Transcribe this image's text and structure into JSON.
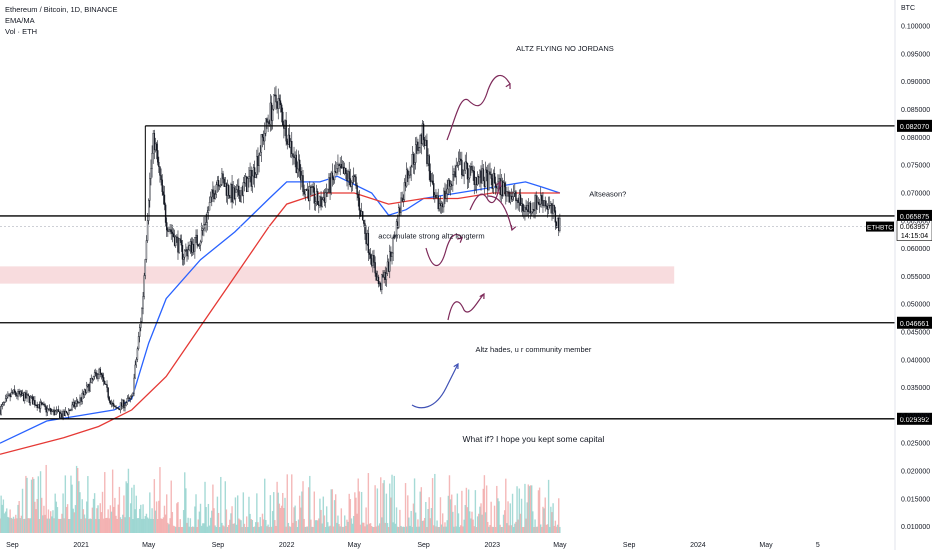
{
  "header": {
    "symbol_line": "Ethereum / Bitcoin, 1D, BINANCE",
    "indicator_1": "EMA/MA",
    "indicator_2": "Vol · ETH"
  },
  "colors": {
    "candle": "#131722",
    "ema": "#2962ff",
    "ma": "#e53935",
    "ma_light": "#90a4f5",
    "zone": "#f5d0d3",
    "line": "#000000",
    "arrow": "#7e2a5a",
    "arrow_blue": "#3f51b5",
    "vol_up": "#80cbc4",
    "vol_down": "#ef9a9a"
  },
  "chart_data": {
    "type": "line",
    "title": "Ethereum / Bitcoin, 1D, BINANCE",
    "y_unit": "BTC",
    "ylim": [
      0.0058,
      0.1047
    ],
    "y_ticks": [
      0.1,
      0.095,
      0.09,
      0.085,
      0.08,
      0.075,
      0.07,
      0.065,
      0.06,
      0.055,
      0.05,
      0.045,
      0.04,
      0.035,
      0.03,
      0.025,
      0.02,
      0.015,
      0.01
    ],
    "y_tick_labels": [
      "0.100000",
      "0.095000",
      "0.090000",
      "0.085000",
      "0.080000",
      "0.075000",
      "0.070000",
      "0.065000",
      "0.060000",
      "0.055000",
      "0.050000",
      "0.045000",
      "0.040000",
      "0.035000",
      "0.030000",
      "0.025000",
      "0.020000",
      "0.015000",
      "0.010000"
    ],
    "x_ticks": [
      {
        "date": "2020-09-01",
        "label": "Sep"
      },
      {
        "date": "2021-01-01",
        "label": "2021"
      },
      {
        "date": "2021-05-01",
        "label": "May"
      },
      {
        "date": "2021-09-01",
        "label": "Sep"
      },
      {
        "date": "2022-01-01",
        "label": "2022"
      },
      {
        "date": "2022-05-01",
        "label": "May"
      },
      {
        "date": "2022-09-01",
        "label": "Sep"
      },
      {
        "date": "2023-01-01",
        "label": "2023"
      },
      {
        "date": "2023-05-01",
        "label": "May"
      },
      {
        "date": "2023-09-01",
        "label": "Sep"
      },
      {
        "date": "2024-01-01",
        "label": "2024"
      },
      {
        "date": "2024-05-01",
        "label": "May"
      },
      {
        "date": "2024-08-01",
        "label": "5"
      }
    ],
    "xlim": [
      "2020-08-10",
      "2024-12-16"
    ],
    "series": [
      {
        "values": [
          [
            "2020-08-10",
            0.031
          ],
          [
            "2020-09-01",
            0.034
          ],
          [
            "2020-10-01",
            0.033
          ],
          [
            "2020-11-01",
            0.031
          ],
          [
            "2020-12-01",
            0.03
          ],
          [
            "2021-01-01",
            0.033
          ],
          [
            "2021-02-01",
            0.038
          ],
          [
            "2021-03-01",
            0.031
          ],
          [
            "2021-04-01",
            0.033
          ],
          [
            "2021-04-20",
            0.05
          ],
          [
            "2021-05-01",
            0.07
          ],
          [
            "2021-05-10",
            0.08
          ],
          [
            "2021-06-01",
            0.065
          ],
          [
            "2021-07-01",
            0.059
          ],
          [
            "2021-08-01",
            0.062
          ],
          [
            "2021-09-01",
            0.073
          ],
          [
            "2021-10-01",
            0.069
          ],
          [
            "2021-11-01",
            0.073
          ],
          [
            "2021-12-01",
            0.084
          ],
          [
            "2021-12-15",
            0.087
          ],
          [
            "2022-01-01",
            0.081
          ],
          [
            "2022-02-01",
            0.071
          ],
          [
            "2022-03-01",
            0.068
          ],
          [
            "2022-04-01",
            0.074
          ],
          [
            "2022-05-01",
            0.072
          ],
          [
            "2022-05-25",
            0.061
          ],
          [
            "2022-06-15",
            0.053
          ],
          [
            "2022-07-01",
            0.057
          ],
          [
            "2022-08-01",
            0.073
          ],
          [
            "2022-09-01",
            0.081
          ],
          [
            "2022-09-20",
            0.068
          ],
          [
            "2022-10-01",
            0.068
          ],
          [
            "2022-11-01",
            0.075
          ],
          [
            "2022-12-01",
            0.073
          ],
          [
            "2023-01-01",
            0.072
          ],
          [
            "2023-02-01",
            0.07
          ],
          [
            "2023-03-01",
            0.067
          ],
          [
            "2023-04-01",
            0.069
          ],
          [
            "2023-04-20",
            0.066
          ],
          [
            "2023-05-01",
            0.063957
          ]
        ]
      },
      {
        "name": "EMA",
        "values": [
          [
            "2020-08-10",
            0.025
          ],
          [
            "2020-11-01",
            0.029
          ],
          [
            "2021-01-01",
            0.03
          ],
          [
            "2021-03-01",
            0.031
          ],
          [
            "2021-04-01",
            0.033
          ],
          [
            "2021-05-01",
            0.043
          ],
          [
            "2021-06-01",
            0.051
          ],
          [
            "2021-08-01",
            0.058
          ],
          [
            "2021-10-01",
            0.063
          ],
          [
            "2021-12-01",
            0.069
          ],
          [
            "2022-01-01",
            0.072
          ],
          [
            "2022-03-01",
            0.072
          ],
          [
            "2022-04-01",
            0.073
          ],
          [
            "2022-06-01",
            0.07
          ],
          [
            "2022-07-01",
            0.066
          ],
          [
            "2022-08-01",
            0.067
          ],
          [
            "2022-09-01",
            0.069
          ],
          [
            "2022-11-01",
            0.07
          ],
          [
            "2023-01-01",
            0.071
          ],
          [
            "2023-03-01",
            0.072
          ],
          [
            "2023-04-01",
            0.071
          ],
          [
            "2023-05-01",
            0.07
          ]
        ]
      },
      {
        "name": "MA",
        "values": [
          [
            "2020-08-10",
            0.023
          ],
          [
            "2020-12-01",
            0.026
          ],
          [
            "2021-02-01",
            0.028
          ],
          [
            "2021-04-01",
            0.031
          ],
          [
            "2021-06-01",
            0.037
          ],
          [
            "2021-08-01",
            0.046
          ],
          [
            "2021-10-01",
            0.055
          ],
          [
            "2021-12-01",
            0.064
          ],
          [
            "2022-01-01",
            0.068
          ],
          [
            "2022-03-01",
            0.07
          ],
          [
            "2022-05-01",
            0.07
          ],
          [
            "2022-07-01",
            0.068
          ],
          [
            "2022-09-01",
            0.069
          ],
          [
            "2022-11-01",
            0.069
          ],
          [
            "2023-01-01",
            0.07
          ],
          [
            "2023-03-01",
            0.07
          ],
          [
            "2023-05-01",
            0.07
          ]
        ]
      }
    ],
    "volume": {
      "style": "histogram",
      "region": "bottom"
    },
    "horizontal_levels": [
      {
        "value": 0.08207,
        "label": "0.082070"
      },
      {
        "value": 0.065875,
        "label": "0.065875"
      },
      {
        "value": 0.046661,
        "label": "0.046661"
      },
      {
        "value": 0.029392,
        "label": "0.029392"
      }
    ],
    "last_price": {
      "symbol": "ETHBTC",
      "value": 0.063957,
      "label": "0.063957",
      "countdown": "14:15:04"
    },
    "zone": {
      "from": 0.0537,
      "to": 0.0568,
      "x_end": "2023-11-20"
    },
    "annotations": [
      {
        "text": "ALTZ FLYING NO JORDANS",
        "date": "2023-05-10",
        "value": 0.0955
      },
      {
        "text": "Altseason?",
        "date": "2023-07-25",
        "value": 0.0694
      },
      {
        "text": "accumulate strong altz longterm",
        "date": "2022-09-15",
        "value": 0.0618
      },
      {
        "text": "Altz hades, u r community member",
        "date": "2023-03-15",
        "value": 0.0414
      },
      {
        "text": "What if? I hope you kept some capital",
        "date": "2023-03-15",
        "value": 0.0252
      }
    ],
    "grid": false,
    "legend": "top-left"
  }
}
